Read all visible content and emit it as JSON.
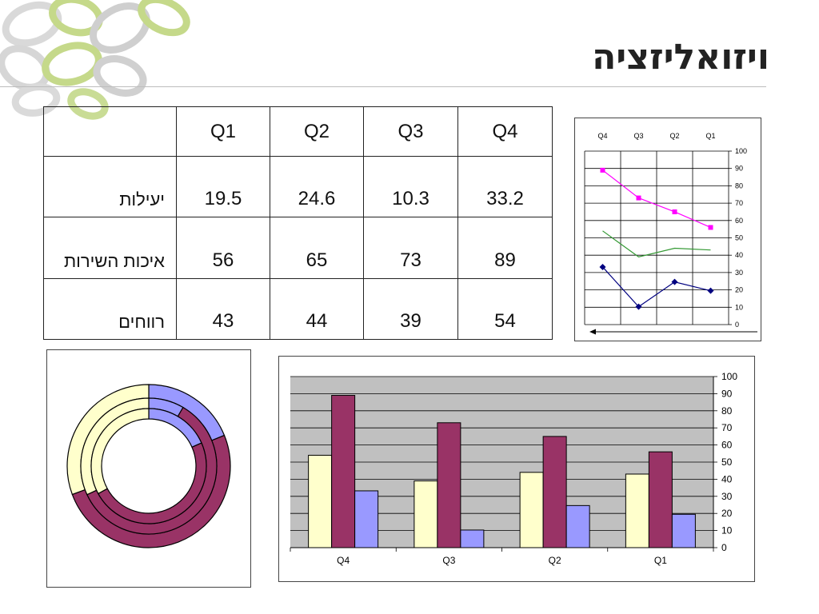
{
  "page": {
    "title": "ויזואליזציה"
  },
  "table": {
    "headers": [
      "",
      "Q1",
      "Q2",
      "Q3",
      "Q4"
    ],
    "rows": [
      {
        "label": "יעילות",
        "values": [
          "19.5",
          "24.6",
          "10.3",
          "33.2"
        ]
      },
      {
        "label": "איכות השירות",
        "values": [
          "56",
          "65",
          "73",
          "89"
        ]
      },
      {
        "label": "רווחים",
        "values": [
          "43",
          "44",
          "39",
          "54"
        ]
      }
    ]
  },
  "chart_data": [
    {
      "type": "line",
      "categories": [
        "Q4",
        "Q3",
        "Q2",
        "Q1"
      ],
      "ylim": [
        0,
        100
      ],
      "yticks": [
        "0",
        "10",
        "20",
        "30",
        "40",
        "50",
        "60",
        "70",
        "80",
        "90",
        "100"
      ],
      "grid": true,
      "axis_position": "top",
      "series": [
        {
          "values": [
            89,
            73,
            65,
            56
          ],
          "color": "#ff00ff",
          "marker": "square"
        },
        {
          "values": [
            54,
            39,
            44,
            43
          ],
          "color": "#339933",
          "marker": "none"
        },
        {
          "values": [
            33.2,
            10.3,
            24.6,
            19.5
          ],
          "color": "#000080",
          "marker": "diamond"
        }
      ]
    },
    {
      "type": "pie",
      "variant": "doughnut",
      "rings": [
        {
          "values": [
            33.2,
            89,
            54
          ]
        },
        {
          "values": [
            10.3,
            73,
            39
          ]
        },
        {
          "values": [
            24.6,
            65,
            44
          ]
        }
      ],
      "colors": [
        "#9999ff",
        "#993366",
        "#ffffcc"
      ]
    },
    {
      "type": "bar",
      "categories": [
        "Q4",
        "Q3",
        "Q2",
        "Q1"
      ],
      "ylim": [
        0,
        100
      ],
      "yticks": [
        "0",
        "10",
        "20",
        "30",
        "40",
        "50",
        "60",
        "70",
        "80",
        "90",
        "100"
      ],
      "grid": true,
      "series": [
        {
          "values": [
            54,
            39,
            44,
            43
          ],
          "color": "#ffffcc"
        },
        {
          "values": [
            89,
            73,
            65,
            56
          ],
          "color": "#993366"
        },
        {
          "values": [
            33.2,
            10.3,
            24.6,
            19.5
          ],
          "color": "#9999ff"
        }
      ]
    }
  ]
}
